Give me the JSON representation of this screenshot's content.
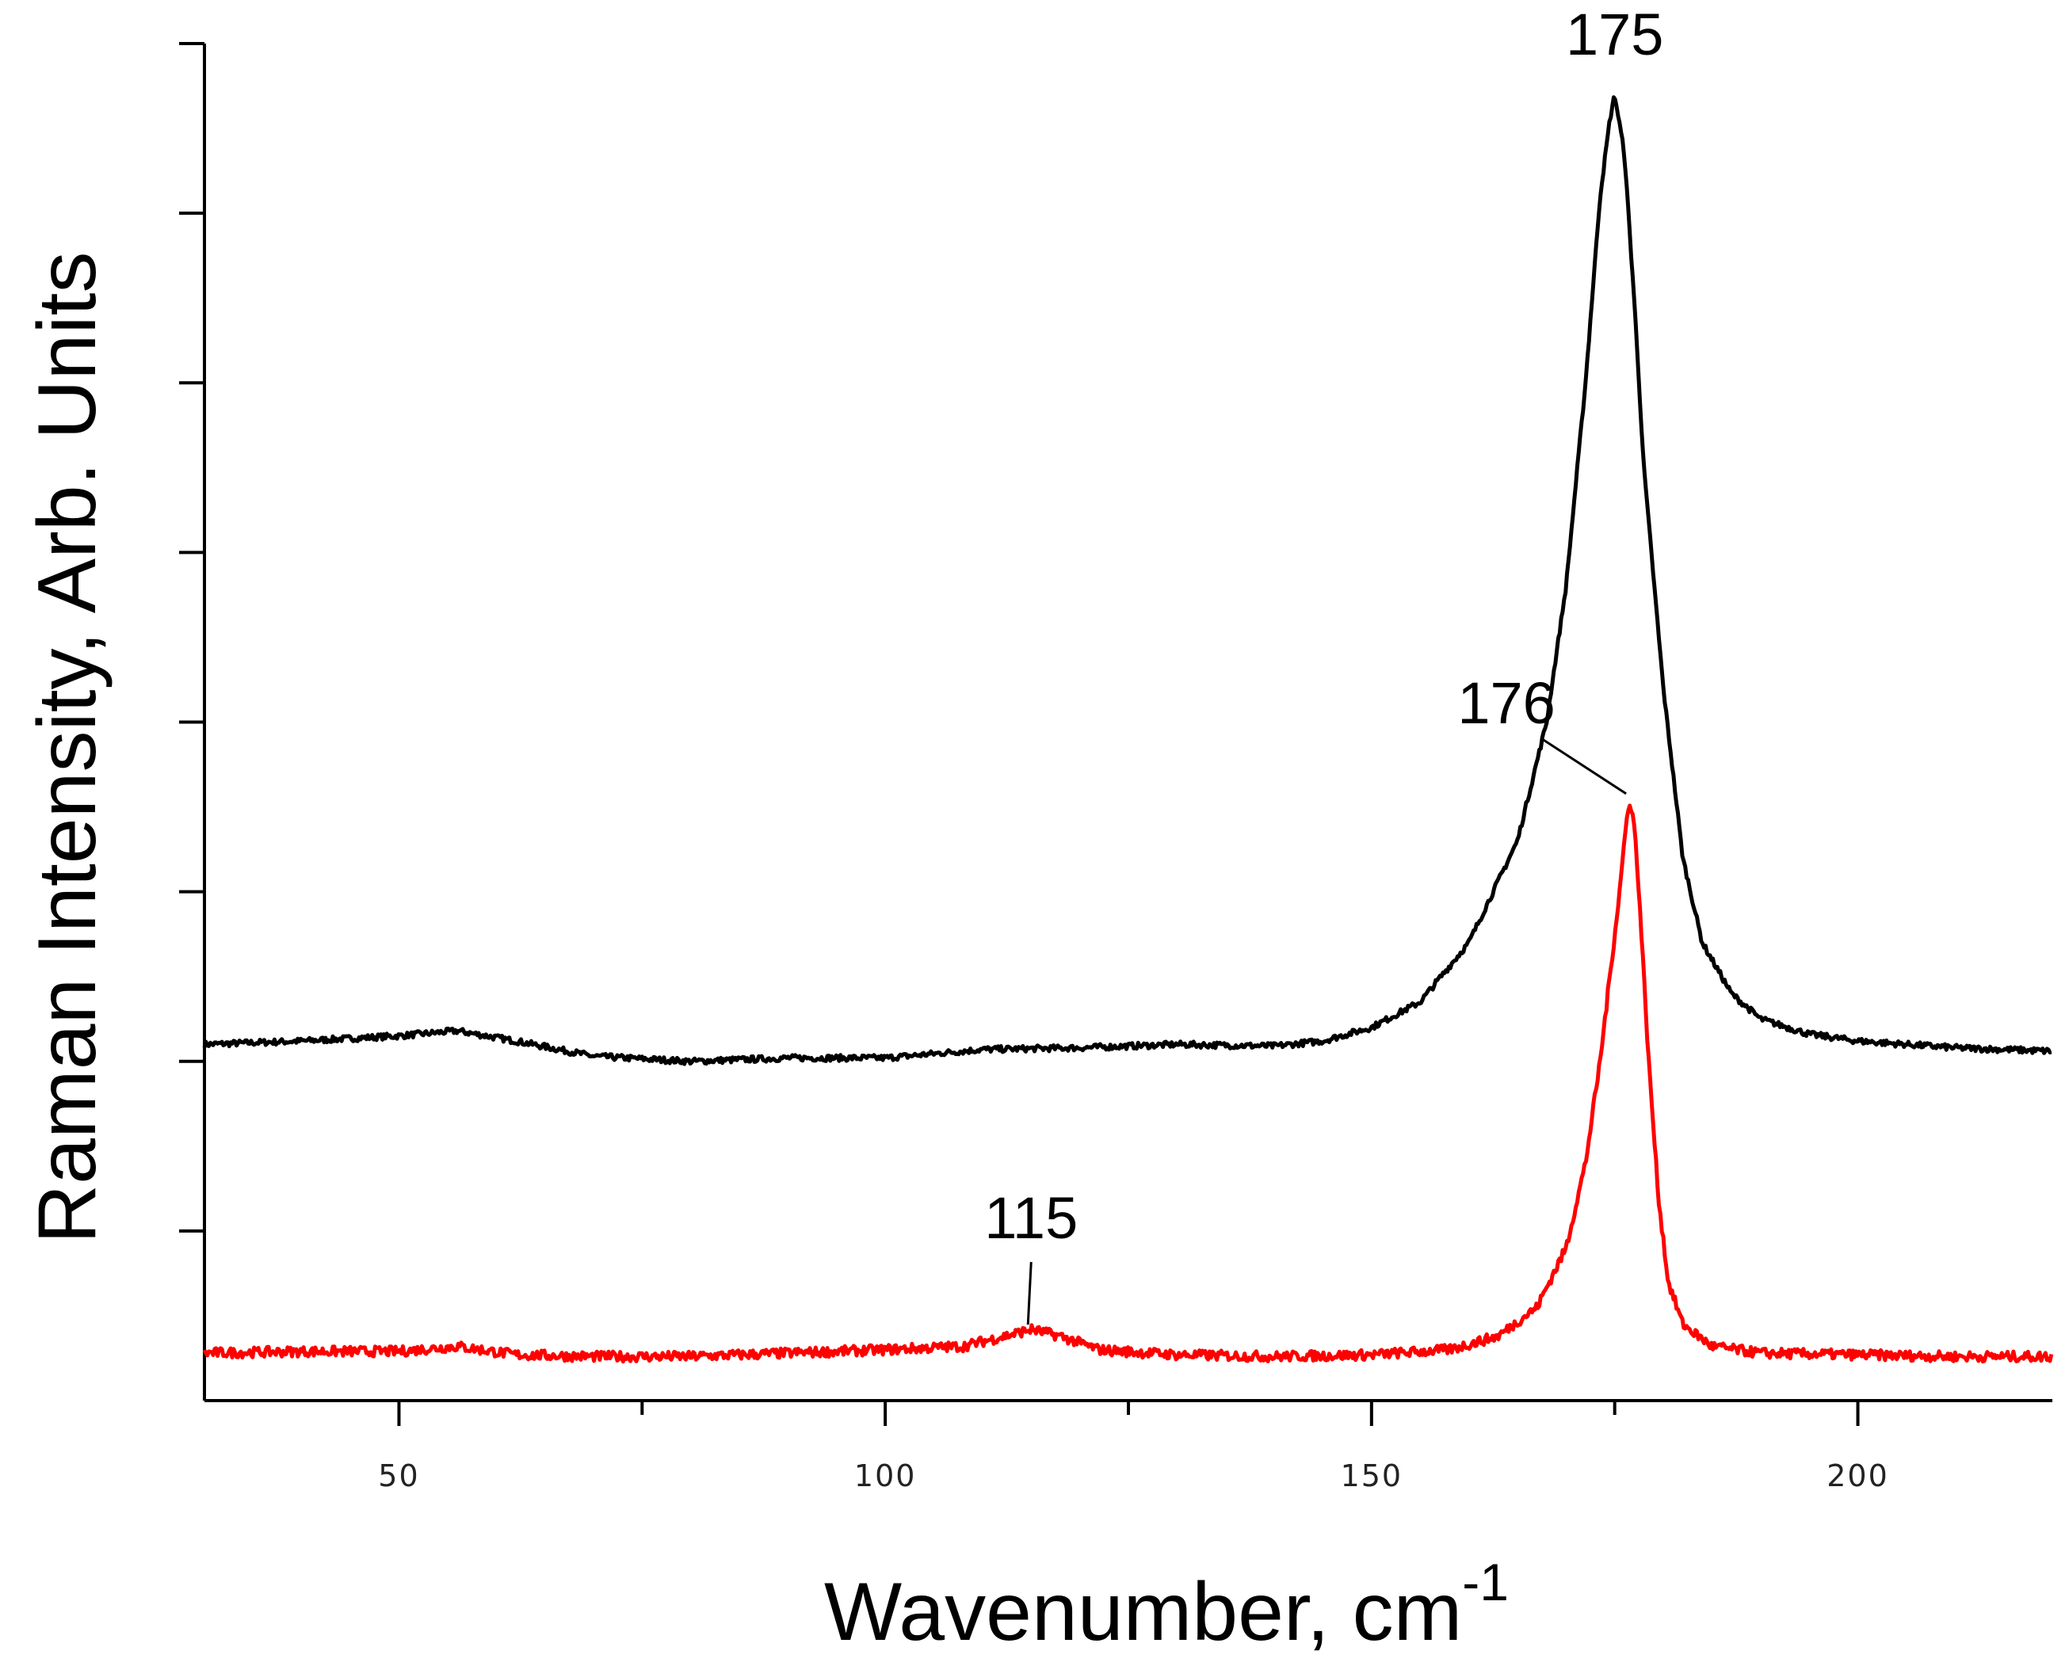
{
  "chart_data": {
    "type": "line",
    "title": "",
    "xlabel": "Wavenumber, cm",
    "xlabel_superscript": "-1",
    "ylabel": "Raman Intensity, Arb. Units",
    "xlim": [
      30,
      220
    ],
    "ylim": [
      0,
      8
    ],
    "x_ticks_major": [
      50,
      100,
      150,
      200
    ],
    "x_ticks_minor": [
      75,
      125,
      175
    ],
    "y_ticks": [
      1,
      2,
      3,
      4,
      5,
      6,
      7,
      8
    ],
    "y_tick_labels_shown": false,
    "grid": false,
    "legend": "none",
    "series": [
      {
        "color": "#000000",
        "points": [
          [
            30,
            2.1
          ],
          [
            40,
            2.12
          ],
          [
            50,
            2.15
          ],
          [
            56,
            2.18
          ],
          [
            62,
            2.12
          ],
          [
            70,
            2.03
          ],
          [
            80,
            2.0
          ],
          [
            90,
            2.02
          ],
          [
            100,
            2.02
          ],
          [
            110,
            2.07
          ],
          [
            120,
            2.08
          ],
          [
            130,
            2.1
          ],
          [
            140,
            2.09
          ],
          [
            145,
            2.12
          ],
          [
            150,
            2.2
          ],
          [
            155,
            2.35
          ],
          [
            160,
            2.7
          ],
          [
            165,
            3.3
          ],
          [
            168,
            4.0
          ],
          [
            170,
            4.8
          ],
          [
            172,
            6.0
          ],
          [
            173.5,
            7.1
          ],
          [
            174.5,
            7.55
          ],
          [
            175,
            7.7
          ],
          [
            176,
            7.35
          ],
          [
            177,
            6.5
          ],
          [
            178,
            5.5
          ],
          [
            180,
            4.2
          ],
          [
            182,
            3.2
          ],
          [
            184,
            2.7
          ],
          [
            187,
            2.4
          ],
          [
            190,
            2.25
          ],
          [
            195,
            2.16
          ],
          [
            200,
            2.12
          ],
          [
            210,
            2.08
          ],
          [
            220,
            2.06
          ]
        ]
      },
      {
        "color": "#ff0000",
        "points": [
          [
            30,
            0.28
          ],
          [
            40,
            0.29
          ],
          [
            50,
            0.29
          ],
          [
            56,
            0.32
          ],
          [
            62,
            0.27
          ],
          [
            70,
            0.26
          ],
          [
            80,
            0.26
          ],
          [
            90,
            0.28
          ],
          [
            100,
            0.3
          ],
          [
            108,
            0.32
          ],
          [
            113,
            0.39
          ],
          [
            115,
            0.42
          ],
          [
            118,
            0.38
          ],
          [
            122,
            0.3
          ],
          [
            130,
            0.27
          ],
          [
            140,
            0.26
          ],
          [
            150,
            0.27
          ],
          [
            158,
            0.3
          ],
          [
            163,
            0.38
          ],
          [
            167,
            0.55
          ],
          [
            170,
            0.9
          ],
          [
            172,
            1.4
          ],
          [
            173.5,
            2.0
          ],
          [
            174.5,
            2.5
          ],
          [
            175.5,
            3.0
          ],
          [
            176,
            3.3
          ],
          [
            176.5,
            3.55
          ],
          [
            177,
            3.4
          ],
          [
            177.5,
            3.0
          ],
          [
            178.5,
            2.0
          ],
          [
            179.5,
            1.2
          ],
          [
            180.5,
            0.7
          ],
          [
            182,
            0.45
          ],
          [
            185,
            0.32
          ],
          [
            190,
            0.28
          ],
          [
            200,
            0.27
          ],
          [
            210,
            0.26
          ],
          [
            220,
            0.26
          ]
        ]
      }
    ],
    "annotations": [
      {
        "text": "175",
        "x": 175,
        "y": 7.7
      },
      {
        "text": "176",
        "x": 176.5,
        "y": 3.55
      },
      {
        "text": "115",
        "x": 115,
        "y": 0.42
      }
    ]
  }
}
